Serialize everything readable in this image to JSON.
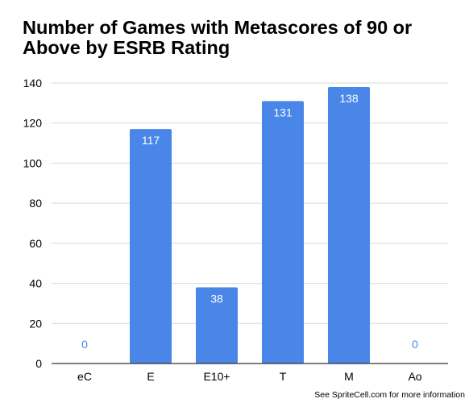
{
  "chart_data": {
    "type": "bar",
    "title": "Number of Games with Metascores of 90 or Above by ESRB Rating",
    "xlabel": "",
    "ylabel": "",
    "categories": [
      "eC",
      "E",
      "E10+",
      "T",
      "M",
      "Ao"
    ],
    "values": [
      0,
      117,
      38,
      131,
      138,
      0
    ],
    "data_labels": [
      "0",
      "117",
      "38",
      "131",
      "138",
      "0"
    ],
    "ylim": [
      0,
      140
    ],
    "y_ticks": [
      0,
      20,
      40,
      60,
      80,
      100,
      120,
      140
    ],
    "y_tick_labels": [
      "0",
      "20",
      "40",
      "60",
      "80",
      "100",
      "120",
      "140"
    ],
    "grid": true,
    "legend": "none",
    "colors": {
      "bar": "#4a86e8",
      "label_inside": "#ffffff",
      "label_outside": "#4a86e8",
      "grid": "#d9d9d9",
      "axis": "#333333",
      "text": "#000000"
    }
  },
  "footer": {
    "note": "See SpriteCell.com for more information"
  }
}
